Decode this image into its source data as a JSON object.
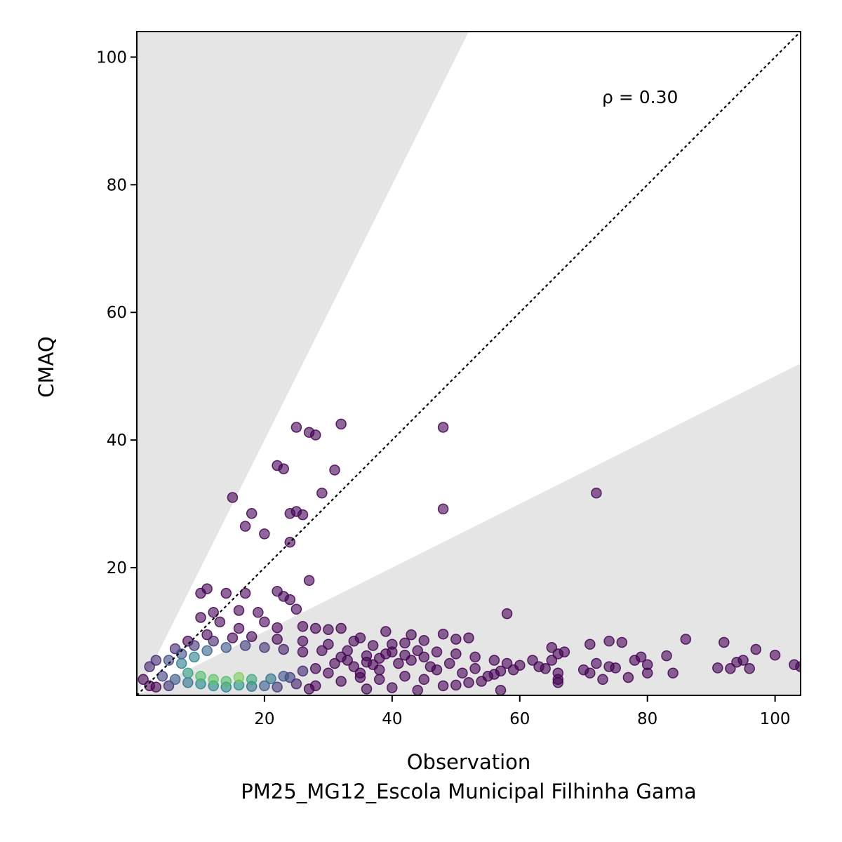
{
  "chart_data": {
    "type": "scatter",
    "xlabel": "Observation",
    "subtitle": "PM25_MG12_Escola Municipal Filhinha Gama",
    "ylabel": "CMAQ",
    "annotation": "ρ = 0.30",
    "xlim": [
      0,
      104
    ],
    "ylim": [
      0,
      104
    ],
    "xticks": [
      20,
      40,
      60,
      80,
      100
    ],
    "yticks": [
      20,
      40,
      60,
      80,
      100
    ],
    "grid": false,
    "reference_line": {
      "slope": 1,
      "style": "dotted",
      "color": "#000000"
    },
    "shaded_band": {
      "upper_slope": 2,
      "lower_slope": 0.5,
      "color": "#e5e5e5"
    },
    "colormap": "viridis",
    "colors": {
      "low_density": "#440154",
      "mid_density": "#21918c",
      "high_density": "#fde725"
    },
    "points": [
      [
        15,
        31
      ],
      [
        17,
        26.5
      ],
      [
        18,
        28.5
      ],
      [
        20,
        25.3
      ],
      [
        22,
        36
      ],
      [
        23,
        35.5
      ],
      [
        24,
        28.5
      ],
      [
        25,
        42
      ],
      [
        25,
        28.8
      ],
      [
        26,
        28.3
      ],
      [
        27,
        41.2
      ],
      [
        28,
        40.8
      ],
      [
        29,
        31.7
      ],
      [
        31,
        35.3
      ],
      [
        32,
        42.5
      ],
      [
        24,
        24
      ],
      [
        27,
        18
      ],
      [
        48,
        42
      ],
      [
        48,
        29.2
      ],
      [
        72,
        31.7
      ],
      [
        58,
        12.8
      ],
      [
        10,
        16
      ],
      [
        11,
        16.7
      ],
      [
        14,
        16
      ],
      [
        17,
        16
      ],
      [
        22,
        16.3
      ],
      [
        23,
        15.5
      ],
      [
        24,
        15
      ],
      [
        10,
        12.2
      ],
      [
        12,
        13
      ],
      [
        16,
        13.3
      ],
      [
        19,
        13
      ],
      [
        25,
        13.5
      ],
      [
        13,
        11.5
      ],
      [
        16,
        10.5
      ],
      [
        20,
        11.5
      ],
      [
        22,
        10.6
      ],
      [
        26,
        10.8
      ],
      [
        28,
        10.5
      ],
      [
        30,
        10.3
      ],
      [
        32,
        10.5
      ],
      [
        39,
        10
      ],
      [
        43,
        9.5
      ],
      [
        48,
        9.6
      ],
      [
        52,
        9
      ],
      [
        45,
        8.6
      ],
      [
        50,
        8.8
      ],
      [
        40,
        8
      ],
      [
        35,
        9
      ],
      [
        11,
        9.5
      ],
      [
        8,
        8.5
      ],
      [
        6,
        7.3
      ],
      [
        5,
        5.5
      ],
      [
        3,
        5.5
      ],
      [
        2,
        4.5
      ],
      [
        1,
        2.5
      ],
      [
        2,
        1.5
      ],
      [
        4,
        3
      ],
      [
        7,
        6.5
      ],
      [
        9,
        7.8
      ],
      [
        12,
        8.5
      ],
      [
        15,
        9
      ],
      [
        18,
        9.2
      ],
      [
        22,
        8.8
      ],
      [
        26,
        8.5
      ],
      [
        30,
        8
      ],
      [
        34,
        8.5
      ],
      [
        37,
        7.8
      ],
      [
        42,
        8.2
      ],
      [
        44,
        7
      ],
      [
        47,
        6.8
      ],
      [
        50,
        6.5
      ],
      [
        53,
        6
      ],
      [
        56,
        5.5
      ],
      [
        58,
        5
      ],
      [
        60,
        4.7
      ],
      [
        62,
        5.5
      ],
      [
        63,
        4.5
      ],
      [
        64,
        4.2
      ],
      [
        65,
        7.5
      ],
      [
        65,
        5.5
      ],
      [
        66,
        6.5
      ],
      [
        66,
        3.5
      ],
      [
        66,
        2.5
      ],
      [
        66,
        2
      ],
      [
        67,
        6.8
      ],
      [
        70,
        4
      ],
      [
        71,
        8
      ],
      [
        71,
        3.5
      ],
      [
        72,
        5
      ],
      [
        73,
        2.5
      ],
      [
        74,
        4.5
      ],
      [
        74,
        8.5
      ],
      [
        75,
        4.3
      ],
      [
        76,
        8.3
      ],
      [
        77,
        2.8
      ],
      [
        78,
        5.5
      ],
      [
        79,
        6
      ],
      [
        80,
        4.8
      ],
      [
        80,
        3.5
      ],
      [
        83,
        6.2
      ],
      [
        84,
        3.5
      ],
      [
        86,
        8.8
      ],
      [
        91,
        4.3
      ],
      [
        92,
        8.3
      ],
      [
        93,
        4.2
      ],
      [
        94,
        5.2
      ],
      [
        95,
        5.5
      ],
      [
        96,
        4.2
      ],
      [
        97,
        7.2
      ],
      [
        100,
        6.3
      ],
      [
        103,
        4.8
      ],
      [
        104,
        4.5
      ],
      [
        57,
        0.8
      ],
      [
        48,
        1.5
      ],
      [
        50,
        1.6
      ],
      [
        52,
        2
      ],
      [
        54,
        2.2
      ],
      [
        55,
        3
      ],
      [
        56,
        3.3
      ],
      [
        57,
        3.8
      ],
      [
        59,
        4
      ],
      [
        45,
        2.5
      ],
      [
        42,
        3
      ],
      [
        38,
        2.5
      ],
      [
        35,
        2.8
      ],
      [
        32,
        2.2
      ],
      [
        28,
        1.5
      ],
      [
        25,
        1.8
      ],
      [
        22,
        1.3
      ],
      [
        20,
        1.5
      ],
      [
        18,
        1.4
      ],
      [
        16,
        1.6
      ],
      [
        14,
        1.3
      ],
      [
        12,
        1.5
      ],
      [
        10,
        1.8
      ],
      [
        8,
        2
      ],
      [
        6,
        2.5
      ],
      [
        5,
        1.5
      ],
      [
        3,
        1.3
      ],
      [
        27,
        1
      ],
      [
        36,
        1
      ],
      [
        40,
        1.2
      ],
      [
        44,
        0.8
      ],
      [
        24,
        2.8
      ],
      [
        30,
        3.5
      ],
      [
        34,
        4.5
      ],
      [
        38,
        4
      ],
      [
        41,
        5
      ],
      [
        46,
        4.5
      ],
      [
        49,
        5
      ],
      [
        51,
        3.5
      ],
      [
        53,
        4.2
      ],
      [
        45,
        6
      ],
      [
        43,
        5.5
      ],
      [
        39,
        6.5
      ],
      [
        36,
        6.2
      ],
      [
        33,
        7
      ],
      [
        29,
        7
      ],
      [
        26,
        6.8
      ],
      [
        23,
        7.2
      ],
      [
        20,
        7.5
      ],
      [
        17,
        7.8
      ],
      [
        14,
        7.5
      ],
      [
        11,
        7
      ],
      [
        9,
        6
      ],
      [
        7,
        5
      ],
      [
        8,
        3.5
      ],
      [
        10,
        3
      ],
      [
        12,
        2.5
      ],
      [
        14,
        2.2
      ],
      [
        16,
        2.8
      ],
      [
        18,
        2.5
      ],
      [
        21,
        2.6
      ],
      [
        23,
        3
      ],
      [
        26,
        3.8
      ],
      [
        28,
        4.2
      ],
      [
        31,
        5
      ],
      [
        33,
        5.5
      ],
      [
        36,
        5.2
      ],
      [
        38,
        5.8
      ],
      [
        40,
        6.8
      ],
      [
        42,
        6.3
      ],
      [
        47,
        4
      ],
      [
        35,
        3.5
      ],
      [
        37,
        4.8
      ],
      [
        32,
        6
      ]
    ]
  }
}
